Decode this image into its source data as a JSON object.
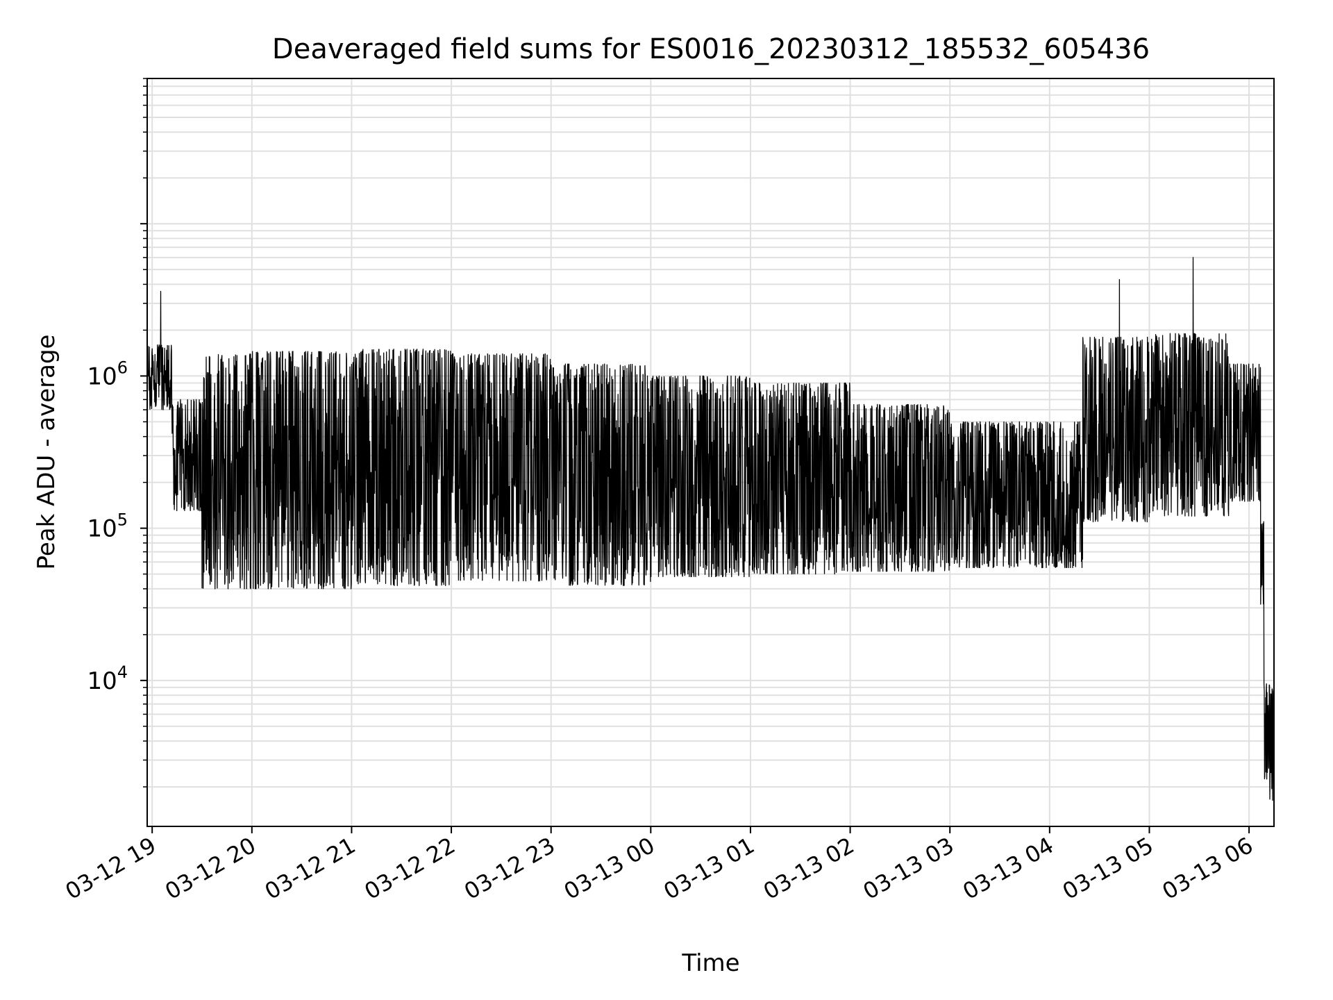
{
  "chart_data": {
    "type": "line",
    "title": "Deaveraged field sums for ES0016_20230312_185532_605436",
    "xlabel": "Time",
    "ylabel": "Peak ADU - average",
    "yscale": "log",
    "ylim": [
      1100,
      90000000
    ],
    "xlim": [
      "2023-03-12 18:57",
      "2023-03-13 06:15"
    ],
    "grid": true,
    "line_color": "#000000",
    "grid_color": "#e0e0e0",
    "x_ticks": [
      {
        "label": "03-12 19",
        "time": "2023-03-12 19:00"
      },
      {
        "label": "03-12 20",
        "time": "2023-03-12 20:00"
      },
      {
        "label": "03-12 21",
        "time": "2023-03-12 21:00"
      },
      {
        "label": "03-12 22",
        "time": "2023-03-12 22:00"
      },
      {
        "label": "03-12 23",
        "time": "2023-03-12 23:00"
      },
      {
        "label": "03-13 00",
        "time": "2023-03-13 00:00"
      },
      {
        "label": "03-13 01",
        "time": "2023-03-13 01:00"
      },
      {
        "label": "03-13 02",
        "time": "2023-03-13 02:00"
      },
      {
        "label": "03-13 03",
        "time": "2023-03-13 03:00"
      },
      {
        "label": "03-13 04",
        "time": "2023-03-13 04:00"
      },
      {
        "label": "03-13 05",
        "time": "2023-03-13 05:00"
      },
      {
        "label": "03-13 06",
        "time": "2023-03-13 06:00"
      }
    ],
    "y_ticks": [
      {
        "base": "10",
        "exp": "4",
        "value": 10000
      },
      {
        "base": "10",
        "exp": "5",
        "value": 100000
      },
      {
        "base": "10",
        "exp": "6",
        "value": 1000000
      }
    ],
    "series": [
      {
        "segments": [
          {
            "start": "2023-03-12 18:57",
            "end": "2023-03-12 19:12",
            "low": 600000,
            "high": 1600000,
            "spike": 3600000
          },
          {
            "start": "2023-03-12 19:12",
            "end": "2023-03-12 19:30",
            "low": 130000,
            "high": 700000
          },
          {
            "start": "2023-03-12 19:30",
            "end": "2023-03-12 20:00",
            "low": 40000,
            "high": 1400000
          },
          {
            "start": "2023-03-12 20:00",
            "end": "2023-03-12 21:00",
            "low": 40000,
            "high": 1450000
          },
          {
            "start": "2023-03-12 21:00",
            "end": "2023-03-12 22:00",
            "low": 42000,
            "high": 1500000
          },
          {
            "start": "2023-03-12 22:00",
            "end": "2023-03-12 23:00",
            "low": 45000,
            "high": 1400000
          },
          {
            "start": "2023-03-12 23:00",
            "end": "2023-03-13 00:00",
            "low": 42000,
            "high": 1200000
          },
          {
            "start": "2023-03-13 00:00",
            "end": "2023-03-13 01:00",
            "low": 48000,
            "high": 1000000
          },
          {
            "start": "2023-03-13 01:00",
            "end": "2023-03-13 02:00",
            "low": 50000,
            "high": 900000
          },
          {
            "start": "2023-03-13 02:00",
            "end": "2023-03-13 03:00",
            "low": 52000,
            "high": 650000
          },
          {
            "start": "2023-03-13 03:00",
            "end": "2023-03-13 04:20",
            "low": 55000,
            "high": 500000
          },
          {
            "start": "2023-03-13 04:20",
            "end": "2023-03-13 05:00",
            "low": 110000,
            "high": 1800000,
            "spike": 4300000
          },
          {
            "start": "2023-03-13 05:00",
            "end": "2023-03-13 05:48",
            "low": 120000,
            "high": 1900000,
            "spike": 6000000
          },
          {
            "start": "2023-03-13 05:48",
            "end": "2023-03-13 06:07",
            "low": 150000,
            "high": 1200000
          },
          {
            "start": "2023-03-13 06:07",
            "end": "2023-03-13 06:09",
            "low": 30000,
            "high": 120000
          },
          {
            "start": "2023-03-13 06:09",
            "end": "2023-03-13 06:15",
            "low": 1600,
            "high": 9500
          }
        ]
      }
    ]
  }
}
